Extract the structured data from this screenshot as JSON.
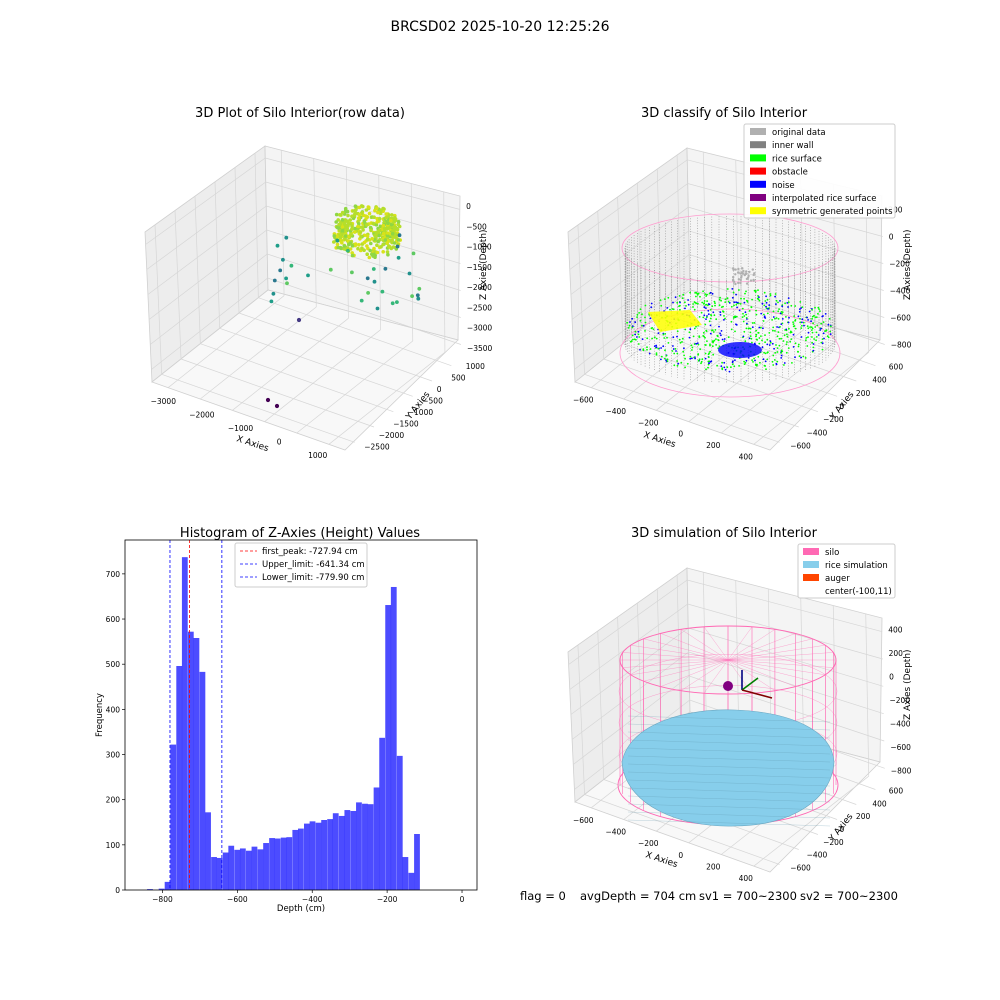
{
  "suptitle": "BRCSD02 2025-10-20 12:25:26",
  "chart_data": [
    {
      "type": "scatter",
      "projection": "3d",
      "title": "3D Plot of Silo Interior(row data)",
      "xlabel": "X Axies",
      "ylabel": "Y Axies",
      "zlabel": "Z Axies (Depth)",
      "x_ticks": [
        -3000,
        -2000,
        -1000,
        0,
        1000
      ],
      "y_ticks": [
        -2500,
        -2000,
        -1500,
        -1000,
        -500,
        0,
        500,
        1000
      ],
      "z_ticks": [
        0,
        -500,
        -1000,
        -1500,
        -2000,
        -2500,
        -3000,
        -3500
      ],
      "colormap": "viridis",
      "grid": true
    },
    {
      "type": "scatter",
      "projection": "3d",
      "title": "3D classify of Silo Interior",
      "xlabel": "X Axies",
      "ylabel": "Y Axies",
      "zlabel": "Z Axies (Depth)",
      "x_ticks": [
        -600,
        -400,
        -200,
        0,
        200,
        400
      ],
      "y_ticks": [
        -600,
        -400,
        -200,
        0,
        200,
        400,
        600
      ],
      "z_ticks": [
        200,
        0,
        -200,
        -400,
        -600,
        -800
      ],
      "legend_position": "top-right",
      "grid": true,
      "series": [
        {
          "name": "original data",
          "color": "#b0b0b0"
        },
        {
          "name": "inner wall",
          "color": "#808080"
        },
        {
          "name": "rice surface",
          "color": "#00ff00"
        },
        {
          "name": "obstacle",
          "color": "#ff0000"
        },
        {
          "name": "noise",
          "color": "#0000ff"
        },
        {
          "name": "interpolated rice surface",
          "color": "#800080"
        },
        {
          "name": "symmetric generated points",
          "color": "#ffff00"
        }
      ]
    },
    {
      "type": "bar",
      "title": "Histogram of Z-Axies (Height) Values",
      "xlabel": "Depth (cm)",
      "ylabel": "Frequency",
      "xlim": [
        -900,
        40
      ],
      "ylim": [
        0,
        775
      ],
      "x_ticks": [
        -800,
        -600,
        -400,
        -200,
        0
      ],
      "y_ticks": [
        0,
        100,
        200,
        300,
        400,
        500,
        600,
        700
      ],
      "bar_color": "#0000ff",
      "bar_alpha": 0.7,
      "bin_width": 15.5,
      "bins": [
        {
          "x": -841,
          "count": 2
        },
        {
          "x": -810,
          "count": 3
        },
        {
          "x": -794,
          "count": 18
        },
        {
          "x": -779,
          "count": 322
        },
        {
          "x": -763,
          "count": 496
        },
        {
          "x": -748,
          "count": 737
        },
        {
          "x": -732,
          "count": 572
        },
        {
          "x": -717,
          "count": 558
        },
        {
          "x": -701,
          "count": 483
        },
        {
          "x": -686,
          "count": 172
        },
        {
          "x": -670,
          "count": 73
        },
        {
          "x": -655,
          "count": 71
        },
        {
          "x": -639,
          "count": 83
        },
        {
          "x": -624,
          "count": 98
        },
        {
          "x": -608,
          "count": 89
        },
        {
          "x": -593,
          "count": 92
        },
        {
          "x": -577,
          "count": 87
        },
        {
          "x": -562,
          "count": 96
        },
        {
          "x": -546,
          "count": 90
        },
        {
          "x": -531,
          "count": 104
        },
        {
          "x": -515,
          "count": 115
        },
        {
          "x": -500,
          "count": 114
        },
        {
          "x": -484,
          "count": 116
        },
        {
          "x": -469,
          "count": 117
        },
        {
          "x": -453,
          "count": 133
        },
        {
          "x": -438,
          "count": 136
        },
        {
          "x": -422,
          "count": 147
        },
        {
          "x": -407,
          "count": 152
        },
        {
          "x": -391,
          "count": 149
        },
        {
          "x": -376,
          "count": 155
        },
        {
          "x": -360,
          "count": 157
        },
        {
          "x": -345,
          "count": 170
        },
        {
          "x": -329,
          "count": 164
        },
        {
          "x": -314,
          "count": 177
        },
        {
          "x": -298,
          "count": 175
        },
        {
          "x": -283,
          "count": 194
        },
        {
          "x": -267,
          "count": 191
        },
        {
          "x": -252,
          "count": 190
        },
        {
          "x": -236,
          "count": 227
        },
        {
          "x": -221,
          "count": 337
        },
        {
          "x": -205,
          "count": 631
        },
        {
          "x": -190,
          "count": 671
        },
        {
          "x": -174,
          "count": 297
        },
        {
          "x": -159,
          "count": 73
        },
        {
          "x": -143,
          "count": 38
        },
        {
          "x": -128,
          "count": 124
        }
      ],
      "vlines": [
        {
          "label": "first_peak: -727.94 cm",
          "value": -727.94,
          "color": "#ff0000"
        },
        {
          "label": "Upper_limit: -641.34 cm",
          "value": -641.34,
          "color": "#0000ff"
        },
        {
          "label": "Lower_limit: -779.90 cm",
          "value": -779.9,
          "color": "#0000ff"
        }
      ],
      "legend_position": "top-center"
    },
    {
      "type": "surface",
      "projection": "3d",
      "title": "3D simulation of Silo Interior",
      "xlabel": "X Axies",
      "ylabel": "Y Axies",
      "zlabel": "Z Axies (Depth)",
      "x_ticks": [
        -600,
        -400,
        -200,
        0,
        200,
        400
      ],
      "y_ticks": [
        -600,
        -400,
        -200,
        0,
        200,
        400,
        600
      ],
      "z_ticks": [
        400,
        200,
        0,
        -200,
        -400,
        -600,
        -800
      ],
      "legend_position": "top-right",
      "grid": true,
      "series": [
        {
          "name": "silo",
          "color": "#ff69b4"
        },
        {
          "name": "rice simulation",
          "color": "#87ceeb"
        },
        {
          "name": "auger",
          "color": "#ff4500"
        },
        {
          "name": "center(-100,11)",
          "color": ""
        }
      ]
    }
  ],
  "footer": {
    "flag": "flag = 0",
    "avg": "avgDepth = 704 cm",
    "sv1": "sv1 = 700~2300",
    "sv2": "sv2 = 700~2300"
  }
}
